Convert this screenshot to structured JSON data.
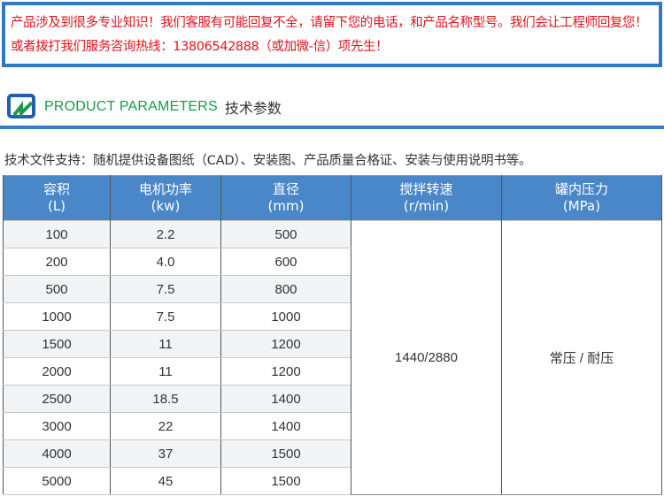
{
  "notice": "产品涉及到很多专业知识！我们客服有可能回复不全，请留下您的电话，和产品名称型号。我们会让工程师回复您！或者拨打我们服务咨询热线：13806542888（或加微-信）项先生！",
  "section": {
    "title_en": "PRODUCT PARAMETERS",
    "title_cn": "技术参数",
    "logo_icon": "logo-icon"
  },
  "support": "技术文件支持：随机提供设备图纸（CAD）、安装图、产品质量合格证、安装与使用说明书等。",
  "colors": {
    "accent": "#4a87c8",
    "notice_text": "#e0141c",
    "title_green": "#1a9a4a"
  },
  "table": {
    "headers": [
      [
        "容积",
        "(L)"
      ],
      [
        "电机功率",
        "(kw)"
      ],
      [
        "直径",
        "(mm)"
      ],
      [
        "搅拌转速",
        "(r/min)"
      ],
      [
        "罐内压力",
        "(MPa)"
      ]
    ],
    "rows": [
      [
        "100",
        "2.2",
        "500"
      ],
      [
        "200",
        "4.0",
        "600"
      ],
      [
        "500",
        "7.5",
        "800"
      ],
      [
        "1000",
        "7.5",
        "1000"
      ],
      [
        "1500",
        "11",
        "1200"
      ],
      [
        "2000",
        "11",
        "1200"
      ],
      [
        "2500",
        "18.5",
        "1400"
      ],
      [
        "3000",
        "22",
        "1400"
      ],
      [
        "4000",
        "37",
        "1500"
      ],
      [
        "5000",
        "45",
        "1500"
      ]
    ],
    "speed": "1440/2880",
    "pressure": "常压 / 耐压"
  }
}
